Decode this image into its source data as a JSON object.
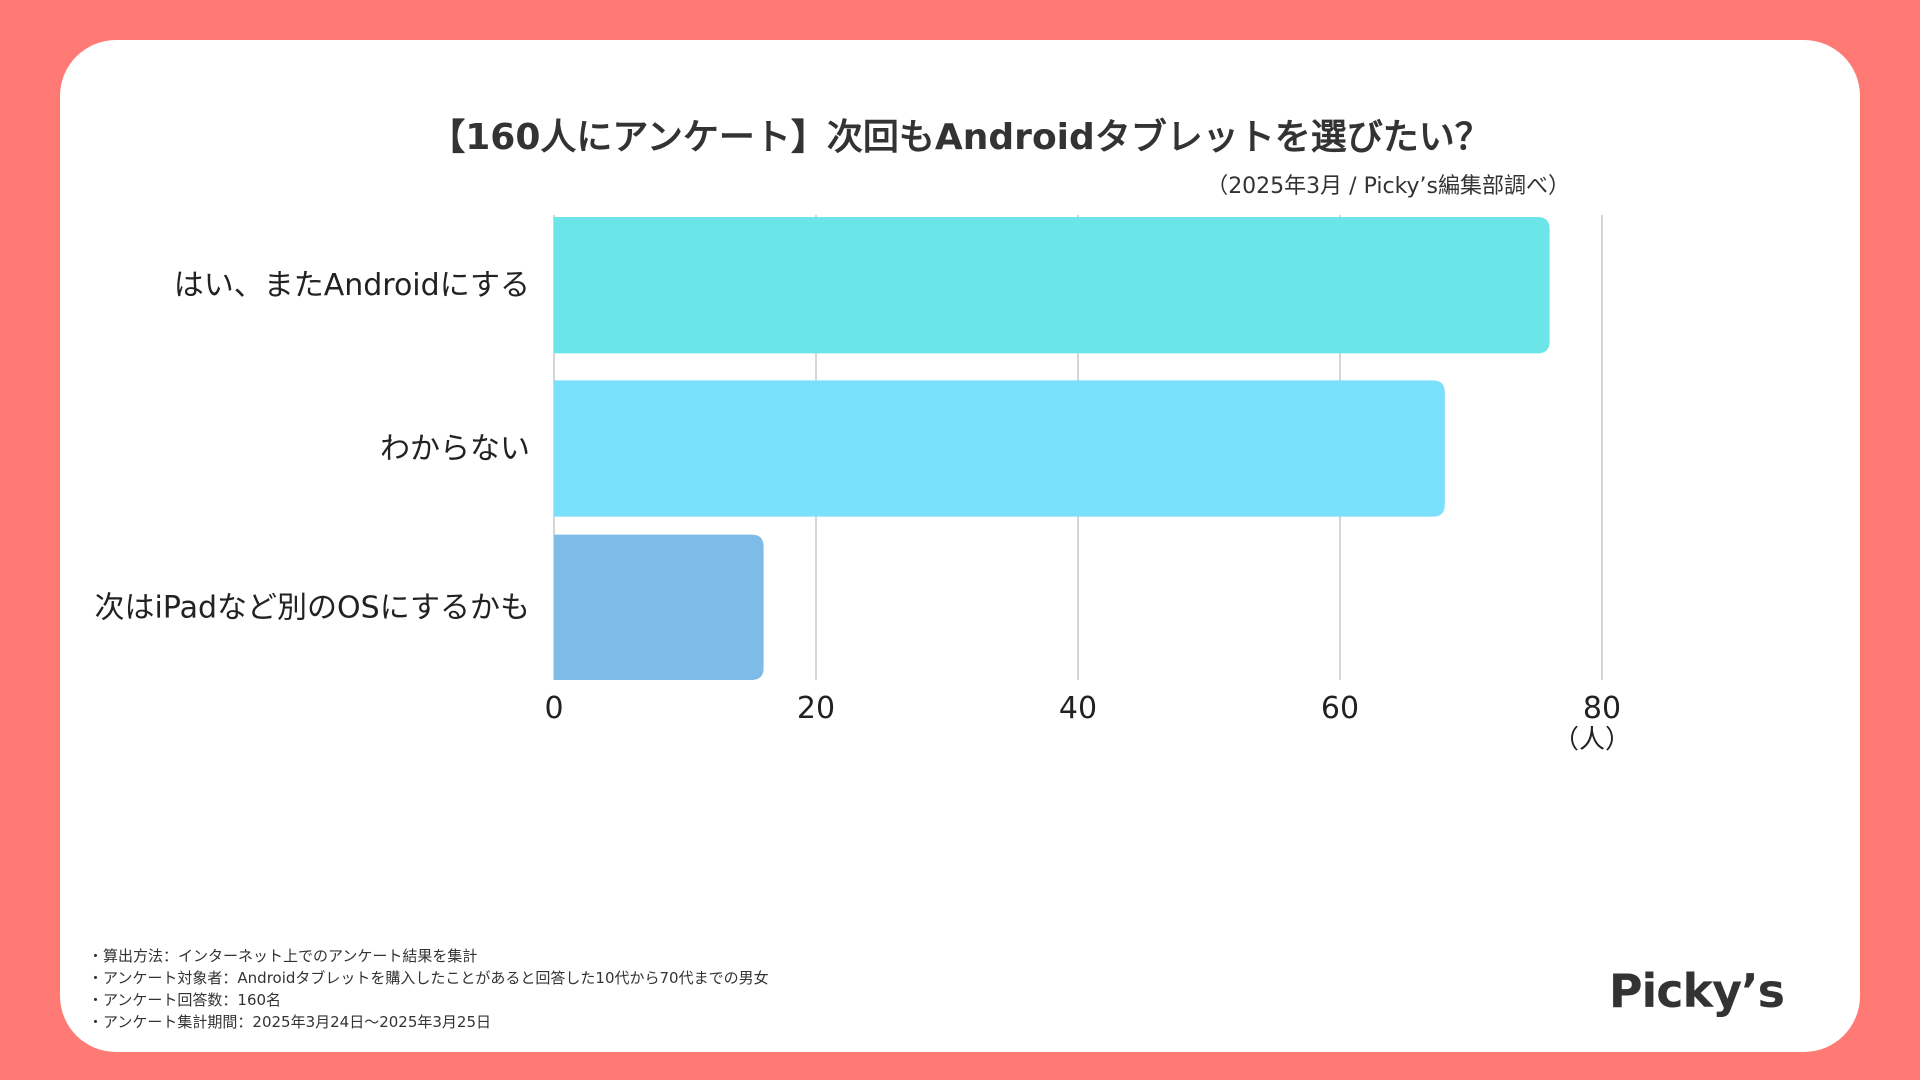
{
  "chart_data": {
    "type": "bar",
    "orientation": "horizontal",
    "title": "【160人にアンケート】次回もAndroidタブレットを選びたい？",
    "subtitle": "（2025年3月 / Picky’s編集部調べ）",
    "categories": [
      "はい、またAndroidにする",
      "わからない",
      "次はiPadなど別のOSにするかも"
    ],
    "values": [
      76,
      68,
      16
    ],
    "colors": [
      "#6CE5E8",
      "#7AE0FC",
      "#7FBBE7"
    ],
    "xlim": [
      0,
      80
    ],
    "xticks": [
      "0",
      "20",
      "40",
      "60",
      "80"
    ],
    "xunit": "（人）",
    "grid": true
  },
  "notes": [
    "・算出方法：インターネット上でのアンケート結果を集計",
    "・アンケート対象者：Androidタブレットを購入したことがあると回答した10代から70代までの男女",
    "・アンケート回答数：160名",
    "・アンケート集計期間：2025年3月24日〜2025年3月25日"
  ],
  "logo": "Picky’s"
}
